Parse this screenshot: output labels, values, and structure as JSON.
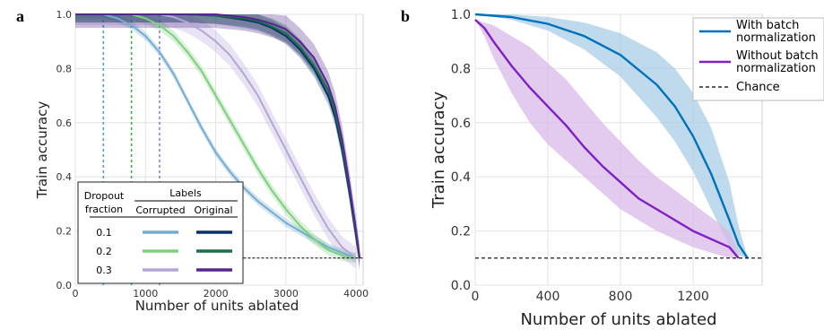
{
  "panels": [
    {
      "label": "a"
    },
    {
      "label": "b"
    }
  ],
  "chart_data": [
    {
      "type": "line",
      "panel": "a",
      "xlabel": "Number of units ablated",
      "ylabel": "Train accuracy",
      "xlim": [
        0,
        4100
      ],
      "ylim": [
        0,
        1.0
      ],
      "xticks": [
        "0",
        "1000",
        "2000",
        "3000",
        "4000"
      ],
      "yticks": [
        "0.0",
        "0.2",
        "0.4",
        "0.6",
        "0.8",
        "1.0"
      ],
      "grid": true,
      "legend": {
        "placement": "bottom-left",
        "row_header_top": "Dropout",
        "row_header_bottom": "fraction",
        "group_header": "Labels",
        "col_headers": [
          "Corrupted",
          "Original"
        ],
        "rows": [
          {
            "label": "0.1",
            "corrupted_color": "#74add1",
            "original_color": "#08306b"
          },
          {
            "label": "0.2",
            "corrupted_color": "#7fcf7f",
            "original_color": "#1b6e46"
          },
          {
            "label": "0.3",
            "corrupted_color": "#b2a7d6",
            "original_color": "#54278f"
          }
        ]
      },
      "vlines": [
        {
          "x": 400,
          "color": "#4f9fd6"
        },
        {
          "x": 800,
          "color": "#3fae4f"
        },
        {
          "x": 1200,
          "color": "#8f7fc7"
        }
      ],
      "chance": 0.1,
      "series": [
        {
          "color": "#74add1",
          "band": 0.015,
          "x": [
            0,
            400,
            600,
            800,
            1000,
            1200,
            1400,
            1600,
            1800,
            2000,
            2200,
            2400,
            2600,
            2800,
            3000,
            3200,
            3400,
            3600,
            3800,
            4000
          ],
          "y": [
            1.0,
            1.0,
            0.985,
            0.96,
            0.92,
            0.86,
            0.78,
            0.68,
            0.58,
            0.49,
            0.42,
            0.36,
            0.31,
            0.27,
            0.23,
            0.2,
            0.17,
            0.14,
            0.12,
            0.1
          ]
        },
        {
          "color": "#7fcf7f",
          "band": 0.02,
          "x": [
            0,
            800,
            1000,
            1200,
            1400,
            1600,
            1800,
            2000,
            2200,
            2400,
            2600,
            2800,
            3000,
            3200,
            3400,
            3600,
            3800,
            4000
          ],
          "y": [
            1.0,
            1.0,
            0.985,
            0.96,
            0.92,
            0.86,
            0.79,
            0.7,
            0.61,
            0.52,
            0.43,
            0.35,
            0.28,
            0.22,
            0.17,
            0.13,
            0.11,
            0.1
          ]
        },
        {
          "color": "#b2a7d6",
          "band": 0.04,
          "x": [
            0,
            1200,
            1400,
            1600,
            1800,
            2000,
            2200,
            2400,
            2600,
            2800,
            3000,
            3200,
            3400,
            3600,
            3800,
            4000
          ],
          "y": [
            1.0,
            1.0,
            0.99,
            0.97,
            0.94,
            0.9,
            0.85,
            0.78,
            0.7,
            0.6,
            0.5,
            0.4,
            0.3,
            0.21,
            0.14,
            0.1
          ]
        },
        {
          "color": "#08306b",
          "band": 0.03,
          "x": [
            0,
            1600,
            2000,
            2400,
            2600,
            2800,
            3000,
            3200,
            3400,
            3600,
            3700,
            3800,
            3900,
            4000,
            4050
          ],
          "y": [
            1.0,
            1.0,
            0.995,
            0.98,
            0.97,
            0.95,
            0.92,
            0.87,
            0.8,
            0.7,
            0.62,
            0.5,
            0.35,
            0.18,
            0.1
          ]
        },
        {
          "color": "#1b6e46",
          "band": 0.03,
          "x": [
            0,
            1600,
            2000,
            2400,
            2600,
            2800,
            3000,
            3200,
            3400,
            3600,
            3700,
            3800,
            3900,
            4000,
            4050
          ],
          "y": [
            1.0,
            1.0,
            0.995,
            0.985,
            0.975,
            0.955,
            0.93,
            0.88,
            0.81,
            0.72,
            0.64,
            0.52,
            0.37,
            0.19,
            0.1
          ]
        },
        {
          "color": "#54278f",
          "band": 0.05,
          "x": [
            0,
            1600,
            2000,
            2400,
            2600,
            2800,
            3000,
            3200,
            3400,
            3600,
            3700,
            3800,
            3900,
            4000,
            4050
          ],
          "y": [
            1.0,
            1.0,
            1.0,
            0.99,
            0.98,
            0.965,
            0.945,
            0.9,
            0.84,
            0.74,
            0.66,
            0.54,
            0.38,
            0.2,
            0.1
          ]
        }
      ]
    },
    {
      "type": "line",
      "panel": "b",
      "xlabel": "Number of units ablated",
      "ylabel": "Train accuracy",
      "xlim": [
        0,
        1580
      ],
      "ylim": [
        0,
        1.0
      ],
      "xticks": [
        "0",
        "400",
        "800",
        "1200"
      ],
      "yticks": [
        "0.0",
        "0.2",
        "0.4",
        "0.6",
        "0.8",
        "1.0"
      ],
      "grid": true,
      "legend": {
        "placement": "top-right",
        "entries": [
          {
            "line1": "With batch",
            "line2": "normalization",
            "color": "#0072bd",
            "style": "solid"
          },
          {
            "line1": "Without batch",
            "line2": "normalization",
            "color": "#7e1fc7",
            "style": "solid"
          },
          {
            "line1": "Chance",
            "line2": "",
            "color": "#000000",
            "style": "dashed"
          }
        ]
      },
      "chance": 0.1,
      "series": [
        {
          "color": "#0072bd",
          "band_color": "#a9cde6",
          "x": [
            0,
            200,
            400,
            600,
            800,
            1000,
            1100,
            1200,
            1300,
            1400,
            1450,
            1500
          ],
          "y": [
            1.0,
            0.99,
            0.965,
            0.92,
            0.85,
            0.74,
            0.66,
            0.55,
            0.41,
            0.24,
            0.15,
            0.1
          ],
          "lower": [
            1.0,
            0.98,
            0.94,
            0.87,
            0.77,
            0.62,
            0.53,
            0.42,
            0.28,
            0.14,
            0.11,
            0.1
          ],
          "upper": [
            1.0,
            1.0,
            0.99,
            0.97,
            0.93,
            0.86,
            0.8,
            0.71,
            0.58,
            0.38,
            0.22,
            0.1
          ]
        },
        {
          "color": "#7e1fc7",
          "band_color": "#d8b9e8",
          "x": [
            0,
            50,
            100,
            200,
            300,
            400,
            500,
            600,
            700,
            800,
            900,
            1000,
            1100,
            1200,
            1300,
            1400,
            1450
          ],
          "y": [
            0.98,
            0.95,
            0.9,
            0.81,
            0.73,
            0.66,
            0.59,
            0.51,
            0.44,
            0.38,
            0.32,
            0.28,
            0.24,
            0.2,
            0.17,
            0.14,
            0.1
          ],
          "lower": [
            0.98,
            0.92,
            0.84,
            0.71,
            0.6,
            0.52,
            0.46,
            0.4,
            0.34,
            0.28,
            0.24,
            0.2,
            0.17,
            0.14,
            0.12,
            0.1,
            0.1
          ],
          "upper": [
            0.98,
            0.97,
            0.96,
            0.92,
            0.88,
            0.82,
            0.76,
            0.68,
            0.6,
            0.53,
            0.46,
            0.4,
            0.35,
            0.3,
            0.25,
            0.2,
            0.12
          ]
        }
      ]
    }
  ]
}
